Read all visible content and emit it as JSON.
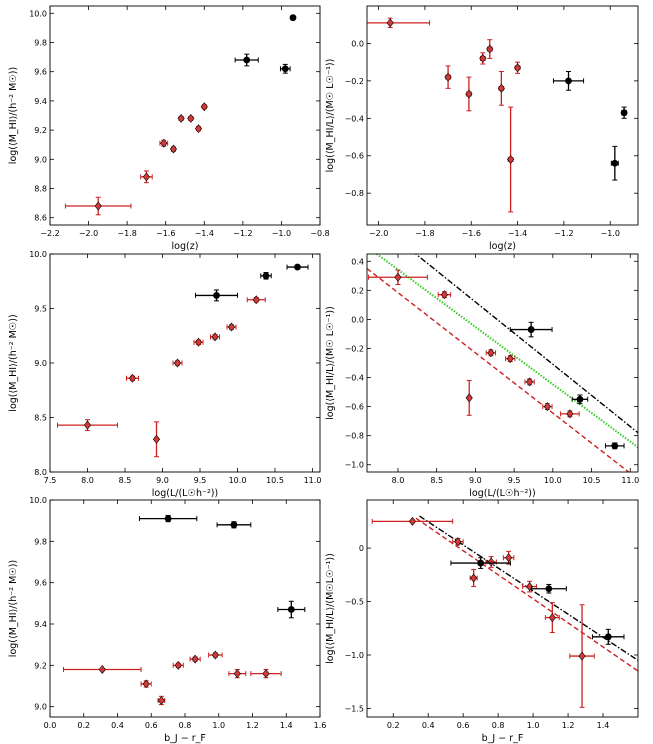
{
  "colors": {
    "red": "#cc2020",
    "redFill": "#cf3a3a",
    "black": "#000000",
    "green": "#33cc22"
  },
  "chart_data": [
    {
      "type": "scatter",
      "xlabel": "log(z)",
      "ylabel": "log(⟨M_HI⟩/(h⁻² M☉))",
      "xlim": [
        -2.2,
        -0.8
      ],
      "ylim": [
        8.55,
        10.05
      ],
      "xticks": [
        -2.2,
        -2.0,
        -1.8,
        -1.6,
        -1.4,
        -1.2,
        -1.0,
        -0.8
      ],
      "xtick_labels": [
        "−2.2",
        "−2.0",
        "−1.8",
        "−1.6",
        "−1.4",
        "−1.2",
        "−1.0",
        "−0.8"
      ],
      "yticks": [
        8.6,
        8.8,
        9.0,
        9.2,
        9.4,
        9.6,
        9.8,
        10.0
      ],
      "ytick_labels": [
        "8.6",
        "8.8",
        "9.0",
        "9.2",
        "9.4",
        "9.6",
        "9.8",
        "10.0"
      ],
      "series": [
        {
          "name": "red",
          "marker": "diamond",
          "points": [
            {
              "x": -1.95,
              "y": 8.68,
              "xerr": 0.17,
              "yerr": 0.06
            },
            {
              "x": -1.7,
              "y": 8.88,
              "xerr": 0.03,
              "yerr": 0.04
            },
            {
              "x": -1.61,
              "y": 9.11,
              "xerr": 0.02,
              "yerr": 0.02
            },
            {
              "x": -1.56,
              "y": 9.07,
              "xerr": 0.01,
              "yerr": 0.015
            },
            {
              "x": -1.52,
              "y": 9.28,
              "xerr": 0.01,
              "yerr": 0.01
            },
            {
              "x": -1.47,
              "y": 9.28,
              "xerr": 0.01,
              "yerr": 0.01
            },
            {
              "x": -1.43,
              "y": 9.21,
              "xerr": 0.01,
              "yerr": 0.01
            },
            {
              "x": -1.4,
              "y": 9.36,
              "xerr": 0.01,
              "yerr": 0.01
            }
          ]
        },
        {
          "name": "black",
          "marker": "circle",
          "points": [
            {
              "x": -1.18,
              "y": 9.68,
              "xerr": 0.06,
              "yerr": 0.04
            },
            {
              "x": -0.98,
              "y": 9.62,
              "xerr": 0.025,
              "yerr": 0.03
            },
            {
              "x": -0.94,
              "y": 9.97,
              "xerr": 0.01,
              "yerr": 0.01
            }
          ]
        }
      ],
      "lines": []
    },
    {
      "type": "scatter",
      "xlabel": "log(z)",
      "ylabel": "log(⟨M_HI/L⟩/(M☉ L☉⁻¹))",
      "xlim": [
        -2.05,
        -0.88
      ],
      "ylim": [
        -0.97,
        0.2
      ],
      "xticks": [
        -2.0,
        -1.8,
        -1.6,
        -1.4,
        -1.2,
        -1.0
      ],
      "xtick_labels": [
        "−2.0",
        "−1.8",
        "−1.6",
        "−1.4",
        "−1.2",
        "−1.0"
      ],
      "yticks": [
        -0.8,
        -0.6,
        -0.4,
        -0.2,
        0.0
      ],
      "ytick_labels": [
        "−0.8",
        "−0.6",
        "−0.4",
        "−0.2",
        "0.0"
      ],
      "series": [
        {
          "name": "red",
          "marker": "diamond",
          "points": [
            {
              "x": -1.95,
              "y": 0.11,
              "xerr": 0.17,
              "yerr": 0.025
            },
            {
              "x": -1.7,
              "y": -0.18,
              "xerr": 0.01,
              "yerr": 0.06
            },
            {
              "x": -1.61,
              "y": -0.27,
              "xerr": 0.01,
              "yerr": 0.09
            },
            {
              "x": -1.55,
              "y": -0.08,
              "xerr": 0.01,
              "yerr": 0.03
            },
            {
              "x": -1.52,
              "y": -0.03,
              "xerr": 0.01,
              "yerr": 0.05
            },
            {
              "x": -1.47,
              "y": -0.24,
              "xerr": 0.01,
              "yerr": 0.09
            },
            {
              "x": -1.43,
              "y": -0.62,
              "xerr": 0.01,
              "yerr": 0.28
            },
            {
              "x": -1.4,
              "y": -0.13,
              "xerr": 0.01,
              "yerr": 0.03
            }
          ]
        },
        {
          "name": "black",
          "marker": "circle",
          "points": [
            {
              "x": -1.18,
              "y": -0.2,
              "xerr": 0.065,
              "yerr": 0.05
            },
            {
              "x": -0.98,
              "y": -0.64,
              "xerr": 0.015,
              "yerr": 0.09
            },
            {
              "x": -0.94,
              "y": -0.37,
              "xerr": 0.01,
              "yerr": 0.03
            }
          ]
        }
      ],
      "lines": []
    },
    {
      "type": "scatter",
      "xlabel": "log(L/(L☉h⁻²))",
      "ylabel": "log(⟨M_HI⟩/(h⁻² M☉))",
      "xlim": [
        7.5,
        11.1
      ],
      "ylim": [
        8.0,
        10.0
      ],
      "xticks": [
        7.5,
        8.0,
        8.5,
        9.0,
        9.5,
        10.0,
        10.5,
        11.0
      ],
      "xtick_labels": [
        "7.5",
        "8.0",
        "8.5",
        "9.0",
        "9.5",
        "10.0",
        "10.5",
        "11.0"
      ],
      "yticks": [
        8.0,
        8.5,
        9.0,
        9.5,
        10.0
      ],
      "ytick_labels": [
        "8.0",
        "8.5",
        "9.0",
        "9.5",
        "10.0"
      ],
      "series": [
        {
          "name": "red",
          "marker": "diamond",
          "points": [
            {
              "x": 8.0,
              "y": 8.43,
              "xerr": 0.4,
              "yerr": 0.05
            },
            {
              "x": 8.6,
              "y": 8.86,
              "xerr": 0.08,
              "yerr": 0.02
            },
            {
              "x": 8.92,
              "y": 8.3,
              "xerr": 0.02,
              "yerr": 0.16
            },
            {
              "x": 9.2,
              "y": 9.0,
              "xerr": 0.06,
              "yerr": 0.02
            },
            {
              "x": 9.48,
              "y": 9.19,
              "xerr": 0.06,
              "yerr": 0.02
            },
            {
              "x": 9.7,
              "y": 9.24,
              "xerr": 0.06,
              "yerr": 0.02
            },
            {
              "x": 9.92,
              "y": 9.33,
              "xerr": 0.06,
              "yerr": 0.02
            },
            {
              "x": 10.25,
              "y": 9.58,
              "xerr": 0.12,
              "yerr": 0.02
            }
          ]
        },
        {
          "name": "black",
          "marker": "circle",
          "points": [
            {
              "x": 9.72,
              "y": 9.62,
              "xerr": 0.28,
              "yerr": 0.05
            },
            {
              "x": 10.38,
              "y": 9.8,
              "xerr": 0.07,
              "yerr": 0.03
            },
            {
              "x": 10.8,
              "y": 9.88,
              "xerr": 0.14,
              "yerr": 0.015
            }
          ]
        }
      ],
      "lines": []
    },
    {
      "type": "scatter",
      "xlabel": "log(L/(L☉h⁻²))",
      "ylabel": "log(⟨M_HI/L⟩/(M☉ L☉⁻¹))",
      "xlim": [
        7.6,
        11.1
      ],
      "ylim": [
        -1.05,
        0.45
      ],
      "xticks": [
        8.0,
        8.5,
        9.0,
        9.5,
        10.0,
        10.5,
        11.0
      ],
      "xtick_labels": [
        "8.0",
        "8.5",
        "9.0",
        "9.5",
        "10.0",
        "10.5",
        "11.0"
      ],
      "yticks": [
        -1.0,
        -0.8,
        -0.6,
        -0.4,
        -0.2,
        0.0,
        0.2,
        0.4
      ],
      "ytick_labels": [
        "−1.0",
        "−0.8",
        "−0.6",
        "−0.4",
        "−0.2",
        "0.0",
        "0.2",
        "0.4"
      ],
      "series": [
        {
          "name": "red",
          "marker": "diamond",
          "points": [
            {
              "x": 8.0,
              "y": 0.29,
              "xerr": 0.38,
              "yerr": 0.05
            },
            {
              "x": 8.6,
              "y": 0.17,
              "xerr": 0.08,
              "yerr": 0.02
            },
            {
              "x": 8.92,
              "y": -0.54,
              "xerr": 0.02,
              "yerr": 0.12
            },
            {
              "x": 9.2,
              "y": -0.23,
              "xerr": 0.06,
              "yerr": 0.02
            },
            {
              "x": 9.45,
              "y": -0.27,
              "xerr": 0.06,
              "yerr": 0.02
            },
            {
              "x": 9.7,
              "y": -0.43,
              "xerr": 0.06,
              "yerr": 0.02
            },
            {
              "x": 9.93,
              "y": -0.6,
              "xerr": 0.06,
              "yerr": 0.02
            },
            {
              "x": 10.22,
              "y": -0.65,
              "xerr": 0.12,
              "yerr": 0.02
            }
          ]
        },
        {
          "name": "black",
          "marker": "circle",
          "points": [
            {
              "x": 9.72,
              "y": -0.07,
              "xerr": 0.27,
              "yerr": 0.05
            },
            {
              "x": 10.35,
              "y": -0.55,
              "xerr": 0.1,
              "yerr": 0.03
            },
            {
              "x": 10.8,
              "y": -0.87,
              "xerr": 0.12,
              "yerr": 0.02
            }
          ]
        }
      ],
      "lines": [
        {
          "style": "dashdot",
          "color": "black",
          "x0": 7.6,
          "y0": 0.72,
          "x1": 11.1,
          "y1": -0.78
        },
        {
          "style": "dotted",
          "color": "green",
          "x0": 7.6,
          "y0": 0.5,
          "x1": 11.1,
          "y1": -0.88
        },
        {
          "style": "dashed",
          "color": "red",
          "x0": 7.6,
          "y0": 0.35,
          "x1": 11.1,
          "y1": -1.1
        }
      ]
    },
    {
      "type": "scatter",
      "xlabel": "b_J − r_F",
      "ylabel": "log(⟨M_HI⟩/(h⁻² M☉))",
      "xlim": [
        0.0,
        1.6
      ],
      "ylim": [
        8.95,
        10.0
      ],
      "xticks": [
        0.0,
        0.2,
        0.4,
        0.6,
        0.8,
        1.0,
        1.2,
        1.4,
        1.6
      ],
      "xtick_labels": [
        "0.0",
        "0.2",
        "0.4",
        "0.6",
        "0.8",
        "1.0",
        "1.2",
        "1.4",
        "1.6"
      ],
      "yticks": [
        9.0,
        9.2,
        9.4,
        9.6,
        9.8,
        10.0
      ],
      "ytick_labels": [
        "9.0",
        "9.2",
        "9.4",
        "9.6",
        "9.8",
        "10.0"
      ],
      "series": [
        {
          "name": "red",
          "marker": "diamond",
          "points": [
            {
              "x": 0.31,
              "y": 9.18,
              "xerr": 0.23,
              "yerr": 0.005
            },
            {
              "x": 0.57,
              "y": 9.11,
              "xerr": 0.03,
              "yerr": 0.015
            },
            {
              "x": 0.66,
              "y": 9.03,
              "xerr": 0.02,
              "yerr": 0.02
            },
            {
              "x": 0.76,
              "y": 9.2,
              "xerr": 0.03,
              "yerr": 0.01
            },
            {
              "x": 0.86,
              "y": 9.23,
              "xerr": 0.03,
              "yerr": 0.01
            },
            {
              "x": 0.98,
              "y": 9.25,
              "xerr": 0.04,
              "yerr": 0.01
            },
            {
              "x": 1.11,
              "y": 9.16,
              "xerr": 0.05,
              "yerr": 0.02
            },
            {
              "x": 1.28,
              "y": 9.16,
              "xerr": 0.09,
              "yerr": 0.02
            }
          ]
        },
        {
          "name": "black",
          "marker": "circle",
          "points": [
            {
              "x": 0.7,
              "y": 9.91,
              "xerr": 0.17,
              "yerr": 0.015
            },
            {
              "x": 1.09,
              "y": 9.88,
              "xerr": 0.1,
              "yerr": 0.015
            },
            {
              "x": 1.43,
              "y": 9.47,
              "xerr": 0.08,
              "yerr": 0.04
            }
          ]
        }
      ],
      "lines": []
    },
    {
      "type": "scatter",
      "xlabel": "b_J − r_F",
      "ylabel": "log(⟨M_HI/L⟩/(M☉L☉⁻¹))",
      "xlim": [
        0.05,
        1.6
      ],
      "ylim": [
        -1.58,
        0.45
      ],
      "xticks": [
        0.2,
        0.4,
        0.6,
        0.8,
        1.0,
        1.2,
        1.4
      ],
      "xtick_labels": [
        "0.2",
        "0.4",
        "0.6",
        "0.8",
        "1.0",
        "1.2",
        "1.4"
      ],
      "yticks": [
        -1.5,
        -1.0,
        -0.5,
        0.0
      ],
      "ytick_labels": [
        "−1.5",
        "−1.0",
        "−0.5",
        "0"
      ],
      "series": [
        {
          "name": "red",
          "marker": "diamond",
          "points": [
            {
              "x": 0.31,
              "y": 0.25,
              "xerr": 0.23,
              "yerr": 0.01
            },
            {
              "x": 0.57,
              "y": 0.06,
              "xerr": 0.03,
              "yerr": 0.03
            },
            {
              "x": 0.66,
              "y": -0.28,
              "xerr": 0.02,
              "yerr": 0.08
            },
            {
              "x": 0.76,
              "y": -0.13,
              "xerr": 0.03,
              "yerr": 0.05
            },
            {
              "x": 0.86,
              "y": -0.09,
              "xerr": 0.03,
              "yerr": 0.06
            },
            {
              "x": 0.98,
              "y": -0.36,
              "xerr": 0.04,
              "yerr": 0.05
            },
            {
              "x": 1.11,
              "y": -0.65,
              "xerr": 0.04,
              "yerr": 0.14
            },
            {
              "x": 1.28,
              "y": -1.01,
              "xerr": 0.07,
              "yerr": 0.48
            }
          ]
        },
        {
          "name": "black",
          "marker": "circle",
          "points": [
            {
              "x": 0.7,
              "y": -0.14,
              "xerr": 0.17,
              "yerr": 0.05
            },
            {
              "x": 1.09,
              "y": -0.38,
              "xerr": 0.1,
              "yerr": 0.04
            },
            {
              "x": 1.43,
              "y": -0.83,
              "xerr": 0.09,
              "yerr": 0.07
            }
          ]
        }
      ],
      "lines": [
        {
          "style": "dashdot",
          "color": "black",
          "x0": 0.35,
          "y0": 0.3,
          "x1": 1.6,
          "y1": -1.05
        },
        {
          "style": "dashed",
          "color": "red",
          "x0": 0.33,
          "y0": 0.28,
          "x1": 1.6,
          "y1": -1.15
        }
      ]
    }
  ]
}
